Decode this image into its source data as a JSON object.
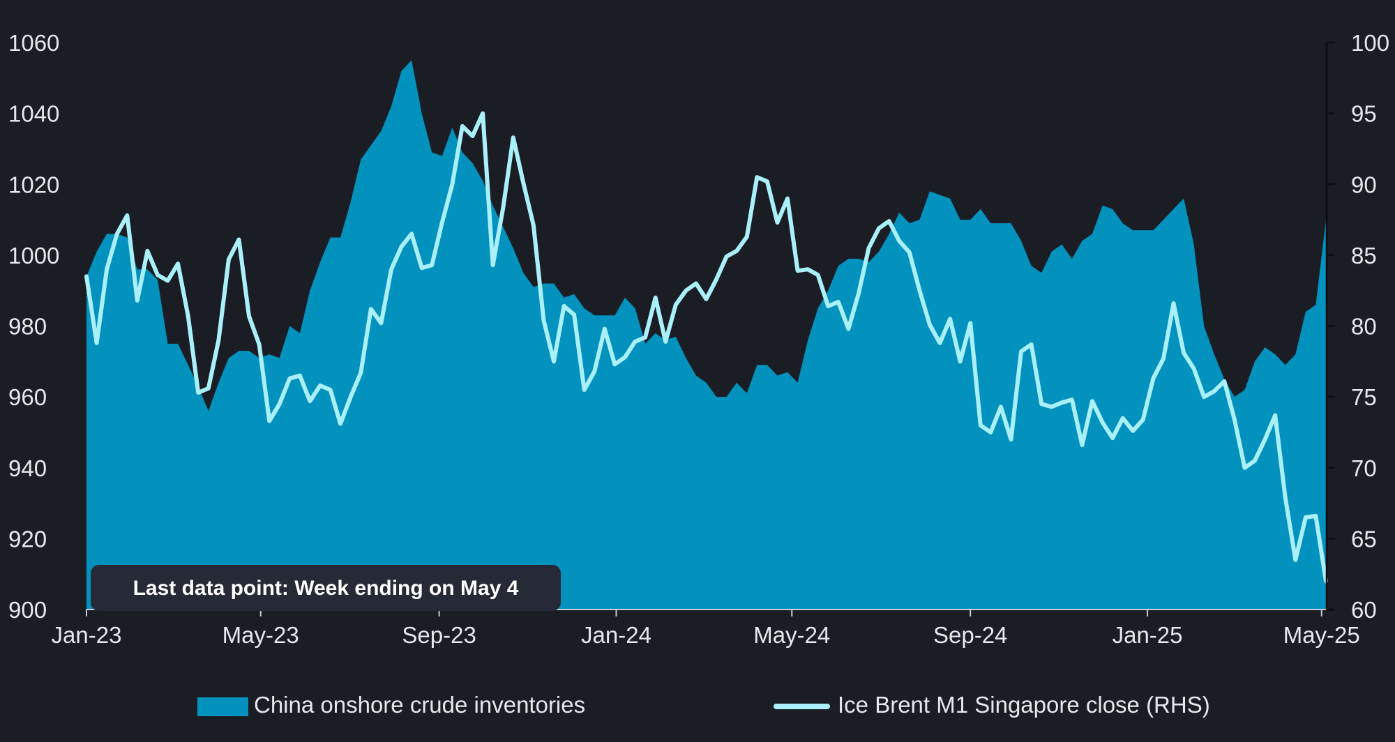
{
  "chart_data": {
    "type": "area",
    "title": "",
    "xlabel": "",
    "ylabel": "",
    "x_ticks": [
      "Jan-23",
      "May-23",
      "Sep-23",
      "Jan-24",
      "May-24",
      "Sep-24",
      "Jan-25",
      "May-25"
    ],
    "x_start": "2023-01-01",
    "x_end": "2025-05-04",
    "y_left": {
      "range": [
        900,
        1060
      ],
      "ticks": [
        900,
        920,
        940,
        960,
        980,
        1000,
        1020,
        1040,
        1060
      ]
    },
    "y_right": {
      "range": [
        60,
        100
      ],
      "ticks": [
        60,
        65,
        70,
        75,
        80,
        85,
        90,
        95,
        100
      ]
    },
    "grid": false,
    "legend_position": "bottom",
    "annotation": "Last data point: Week ending on May 4",
    "colors": {
      "background": "#1b1d25",
      "area": "#0392be",
      "line": "#a9f0fb",
      "note_bg": "#262a36"
    },
    "series": [
      {
        "name": "China onshore crude inventories",
        "kind": "area",
        "axis": "left",
        "color": "#0392be",
        "data": [
          [
            "2023-01-01",
            994
          ],
          [
            "2023-01-08",
            1001
          ],
          [
            "2023-01-15",
            1006
          ],
          [
            "2023-01-22",
            1006
          ],
          [
            "2023-01-29",
            1005
          ],
          [
            "2023-02-05",
            996
          ],
          [
            "2023-02-12",
            996
          ],
          [
            "2023-02-19",
            993
          ],
          [
            "2023-02-26",
            975
          ],
          [
            "2023-03-05",
            975
          ],
          [
            "2023-03-12",
            969
          ],
          [
            "2023-03-19",
            963
          ],
          [
            "2023-03-26",
            956
          ],
          [
            "2023-04-02",
            964
          ],
          [
            "2023-04-09",
            971
          ],
          [
            "2023-04-16",
            973
          ],
          [
            "2023-04-23",
            973
          ],
          [
            "2023-04-30",
            971
          ],
          [
            "2023-05-07",
            972
          ],
          [
            "2023-05-14",
            971
          ],
          [
            "2023-05-21",
            980
          ],
          [
            "2023-05-28",
            978
          ],
          [
            "2023-06-04",
            990
          ],
          [
            "2023-06-11",
            998
          ],
          [
            "2023-06-18",
            1005
          ],
          [
            "2023-06-25",
            1005
          ],
          [
            "2023-07-02",
            1015
          ],
          [
            "2023-07-09",
            1027
          ],
          [
            "2023-07-16",
            1031
          ],
          [
            "2023-07-23",
            1035
          ],
          [
            "2023-07-30",
            1042
          ],
          [
            "2023-08-06",
            1052
          ],
          [
            "2023-08-13",
            1055
          ],
          [
            "2023-08-20",
            1040
          ],
          [
            "2023-08-27",
            1029
          ],
          [
            "2023-09-03",
            1028
          ],
          [
            "2023-09-10",
            1036
          ],
          [
            "2023-09-17",
            1029
          ],
          [
            "2023-09-24",
            1026
          ],
          [
            "2023-10-01",
            1021
          ],
          [
            "2023-10-08",
            1014
          ],
          [
            "2023-10-15",
            1008
          ],
          [
            "2023-10-22",
            1002
          ],
          [
            "2023-10-29",
            995
          ],
          [
            "2023-11-05",
            991
          ],
          [
            "2023-11-12",
            992
          ],
          [
            "2023-11-19",
            992
          ],
          [
            "2023-11-26",
            988
          ],
          [
            "2023-12-03",
            989
          ],
          [
            "2023-12-10",
            985
          ],
          [
            "2023-12-17",
            983
          ],
          [
            "2023-12-24",
            983
          ],
          [
            "2023-12-31",
            983
          ],
          [
            "2024-01-07",
            988
          ],
          [
            "2024-01-14",
            985
          ],
          [
            "2024-01-21",
            975
          ],
          [
            "2024-01-28",
            978
          ],
          [
            "2024-02-04",
            976
          ],
          [
            "2024-02-11",
            977
          ],
          [
            "2024-02-18",
            971
          ],
          [
            "2024-02-25",
            966
          ],
          [
            "2024-03-03",
            964
          ],
          [
            "2024-03-10",
            960
          ],
          [
            "2024-03-17",
            960
          ],
          [
            "2024-03-24",
            964
          ],
          [
            "2024-03-31",
            961
          ],
          [
            "2024-04-07",
            969
          ],
          [
            "2024-04-14",
            969
          ],
          [
            "2024-04-21",
            966
          ],
          [
            "2024-04-28",
            967
          ],
          [
            "2024-05-05",
            964
          ],
          [
            "2024-05-12",
            976
          ],
          [
            "2024-05-19",
            985
          ],
          [
            "2024-05-26",
            990
          ],
          [
            "2024-06-02",
            997
          ],
          [
            "2024-06-09",
            999
          ],
          [
            "2024-06-16",
            999
          ],
          [
            "2024-06-23",
            998
          ],
          [
            "2024-06-30",
            1001
          ],
          [
            "2024-07-07",
            1006
          ],
          [
            "2024-07-14",
            1012
          ],
          [
            "2024-07-21",
            1009
          ],
          [
            "2024-07-28",
            1010
          ],
          [
            "2024-08-04",
            1018
          ],
          [
            "2024-08-11",
            1017
          ],
          [
            "2024-08-18",
            1016
          ],
          [
            "2024-08-25",
            1010
          ],
          [
            "2024-09-01",
            1010
          ],
          [
            "2024-09-08",
            1013
          ],
          [
            "2024-09-15",
            1009
          ],
          [
            "2024-09-22",
            1009
          ],
          [
            "2024-09-29",
            1009
          ],
          [
            "2024-10-06",
            1004
          ],
          [
            "2024-10-13",
            997
          ],
          [
            "2024-10-20",
            995
          ],
          [
            "2024-10-27",
            1001
          ],
          [
            "2024-11-03",
            1003
          ],
          [
            "2024-11-10",
            999
          ],
          [
            "2024-11-17",
            1004
          ],
          [
            "2024-11-24",
            1006
          ],
          [
            "2024-12-01",
            1014
          ],
          [
            "2024-12-08",
            1013
          ],
          [
            "2024-12-15",
            1009
          ],
          [
            "2024-12-22",
            1007
          ],
          [
            "2024-12-29",
            1007
          ],
          [
            "2025-01-05",
            1007
          ],
          [
            "2025-01-12",
            1010
          ],
          [
            "2025-01-19",
            1013
          ],
          [
            "2025-01-26",
            1016
          ],
          [
            "2025-02-02",
            1003
          ],
          [
            "2025-02-09",
            980
          ],
          [
            "2025-02-16",
            972
          ],
          [
            "2025-02-23",
            965
          ],
          [
            "2025-03-02",
            960
          ],
          [
            "2025-03-09",
            962
          ],
          [
            "2025-03-16",
            970
          ],
          [
            "2025-03-23",
            974
          ],
          [
            "2025-03-30",
            972
          ],
          [
            "2025-04-06",
            969
          ],
          [
            "2025-04-13",
            972
          ],
          [
            "2025-04-20",
            984
          ],
          [
            "2025-04-27",
            986
          ],
          [
            "2025-05-04",
            1010
          ]
        ]
      },
      {
        "name": "Ice Brent M1 Singapore close (RHS)",
        "kind": "line",
        "axis": "right",
        "color": "#a9f0fb",
        "data": [
          [
            "2023-01-01",
            83.5
          ],
          [
            "2023-01-08",
            78.8
          ],
          [
            "2023-01-15",
            84.0
          ],
          [
            "2023-01-22",
            86.5
          ],
          [
            "2023-01-29",
            87.8
          ],
          [
            "2023-02-05",
            81.8
          ],
          [
            "2023-02-12",
            85.3
          ],
          [
            "2023-02-19",
            83.6
          ],
          [
            "2023-02-26",
            83.2
          ],
          [
            "2023-03-05",
            84.4
          ],
          [
            "2023-03-12",
            80.7
          ],
          [
            "2023-03-19",
            75.3
          ],
          [
            "2023-03-26",
            75.6
          ],
          [
            "2023-04-02",
            79.0
          ],
          [
            "2023-04-09",
            84.7
          ],
          [
            "2023-04-16",
            86.1
          ],
          [
            "2023-04-23",
            80.7
          ],
          [
            "2023-04-30",
            78.7
          ],
          [
            "2023-05-07",
            73.3
          ],
          [
            "2023-05-14",
            74.5
          ],
          [
            "2023-05-21",
            76.3
          ],
          [
            "2023-05-28",
            76.5
          ],
          [
            "2023-06-04",
            74.7
          ],
          [
            "2023-06-11",
            75.8
          ],
          [
            "2023-06-18",
            75.5
          ],
          [
            "2023-06-25",
            73.1
          ],
          [
            "2023-07-02",
            75.0
          ],
          [
            "2023-07-09",
            76.7
          ],
          [
            "2023-07-16",
            81.2
          ],
          [
            "2023-07-23",
            80.2
          ],
          [
            "2023-07-30",
            84.0
          ],
          [
            "2023-08-06",
            85.6
          ],
          [
            "2023-08-13",
            86.5
          ],
          [
            "2023-08-20",
            84.1
          ],
          [
            "2023-08-27",
            84.3
          ],
          [
            "2023-09-03",
            87.3
          ],
          [
            "2023-09-10",
            90.0
          ],
          [
            "2023-09-17",
            94.1
          ],
          [
            "2023-09-24",
            93.4
          ],
          [
            "2023-10-01",
            95.0
          ],
          [
            "2023-10-08",
            84.3
          ],
          [
            "2023-10-15",
            88.3
          ],
          [
            "2023-10-22",
            93.3
          ],
          [
            "2023-10-29",
            90.1
          ],
          [
            "2023-11-05",
            87.1
          ],
          [
            "2023-11-12",
            80.4
          ],
          [
            "2023-11-19",
            77.5
          ],
          [
            "2023-11-26",
            81.4
          ],
          [
            "2023-12-03",
            80.8
          ],
          [
            "2023-12-10",
            75.5
          ],
          [
            "2023-12-17",
            76.8
          ],
          [
            "2023-12-24",
            79.8
          ],
          [
            "2023-12-31",
            77.3
          ],
          [
            "2024-01-07",
            77.8
          ],
          [
            "2024-01-14",
            78.9
          ],
          [
            "2024-01-21",
            79.2
          ],
          [
            "2024-01-28",
            82.0
          ],
          [
            "2024-02-04",
            78.9
          ],
          [
            "2024-02-11",
            81.5
          ],
          [
            "2024-02-18",
            82.5
          ],
          [
            "2024-02-25",
            83.0
          ],
          [
            "2024-03-03",
            81.9
          ],
          [
            "2024-03-10",
            83.3
          ],
          [
            "2024-03-17",
            84.9
          ],
          [
            "2024-03-24",
            85.3
          ],
          [
            "2024-03-31",
            86.3
          ],
          [
            "2024-04-07",
            90.5
          ],
          [
            "2024-04-14",
            90.2
          ],
          [
            "2024-04-21",
            87.3
          ],
          [
            "2024-04-28",
            89.0
          ],
          [
            "2024-05-05",
            83.9
          ],
          [
            "2024-05-12",
            84.0
          ],
          [
            "2024-05-19",
            83.6
          ],
          [
            "2024-05-26",
            81.4
          ],
          [
            "2024-06-02",
            81.7
          ],
          [
            "2024-06-09",
            79.8
          ],
          [
            "2024-06-16",
            82.3
          ],
          [
            "2024-06-23",
            85.5
          ],
          [
            "2024-06-30",
            86.9
          ],
          [
            "2024-07-07",
            87.4
          ],
          [
            "2024-07-14",
            86.0
          ],
          [
            "2024-07-21",
            85.2
          ],
          [
            "2024-07-28",
            82.5
          ],
          [
            "2024-08-04",
            80.1
          ],
          [
            "2024-08-11",
            78.8
          ],
          [
            "2024-08-18",
            80.5
          ],
          [
            "2024-08-25",
            77.5
          ],
          [
            "2024-09-01",
            80.2
          ],
          [
            "2024-09-08",
            73.0
          ],
          [
            "2024-09-15",
            72.5
          ],
          [
            "2024-09-22",
            74.3
          ],
          [
            "2024-09-29",
            72.0
          ],
          [
            "2024-10-06",
            78.2
          ],
          [
            "2024-10-13",
            78.7
          ],
          [
            "2024-10-20",
            74.5
          ],
          [
            "2024-10-27",
            74.3
          ],
          [
            "2024-11-03",
            74.6
          ],
          [
            "2024-11-10",
            74.8
          ],
          [
            "2024-11-17",
            71.6
          ],
          [
            "2024-11-24",
            74.7
          ],
          [
            "2024-12-01",
            73.2
          ],
          [
            "2024-12-08",
            72.1
          ],
          [
            "2024-12-15",
            73.5
          ],
          [
            "2024-12-22",
            72.6
          ],
          [
            "2024-12-29",
            73.4
          ],
          [
            "2025-01-05",
            76.3
          ],
          [
            "2025-01-12",
            77.7
          ],
          [
            "2025-01-19",
            81.6
          ],
          [
            "2025-01-26",
            78.1
          ],
          [
            "2025-02-02",
            77.0
          ],
          [
            "2025-02-09",
            75.0
          ],
          [
            "2025-02-16",
            75.4
          ],
          [
            "2025-02-23",
            76.1
          ],
          [
            "2025-03-02",
            73.4
          ],
          [
            "2025-03-09",
            70.0
          ],
          [
            "2025-03-16",
            70.5
          ],
          [
            "2025-03-23",
            72.0
          ],
          [
            "2025-03-30",
            73.7
          ],
          [
            "2025-04-06",
            67.9
          ],
          [
            "2025-04-13",
            63.5
          ],
          [
            "2025-04-20",
            66.5
          ],
          [
            "2025-04-27",
            66.6
          ],
          [
            "2025-05-04",
            62.0
          ]
        ]
      }
    ]
  }
}
